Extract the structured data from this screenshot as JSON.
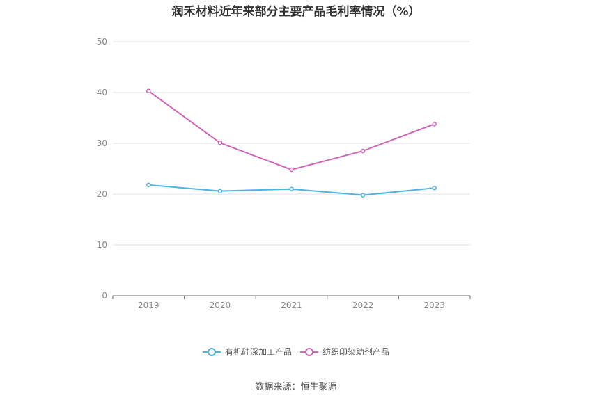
{
  "chart_data": {
    "type": "line",
    "title": "润禾材料近年来部分主要产品毛利率情况（%）",
    "categories": [
      "2019",
      "2020",
      "2021",
      "2022",
      "2023"
    ],
    "series": [
      {
        "name": "有机硅深加工产品",
        "color": "#4db3e6",
        "values": [
          21.8,
          20.6,
          21.0,
          19.8,
          21.2
        ]
      },
      {
        "name": "纺织印染助剂产品",
        "color": "#d264b6",
        "values": [
          40.3,
          30.1,
          24.8,
          28.5,
          33.8
        ]
      }
    ],
    "ylim": [
      0,
      50
    ],
    "yticks": [
      0,
      10,
      20,
      30,
      40,
      50
    ],
    "grid": true,
    "legend": "bottom"
  },
  "source": "数据来源：恒生聚源"
}
